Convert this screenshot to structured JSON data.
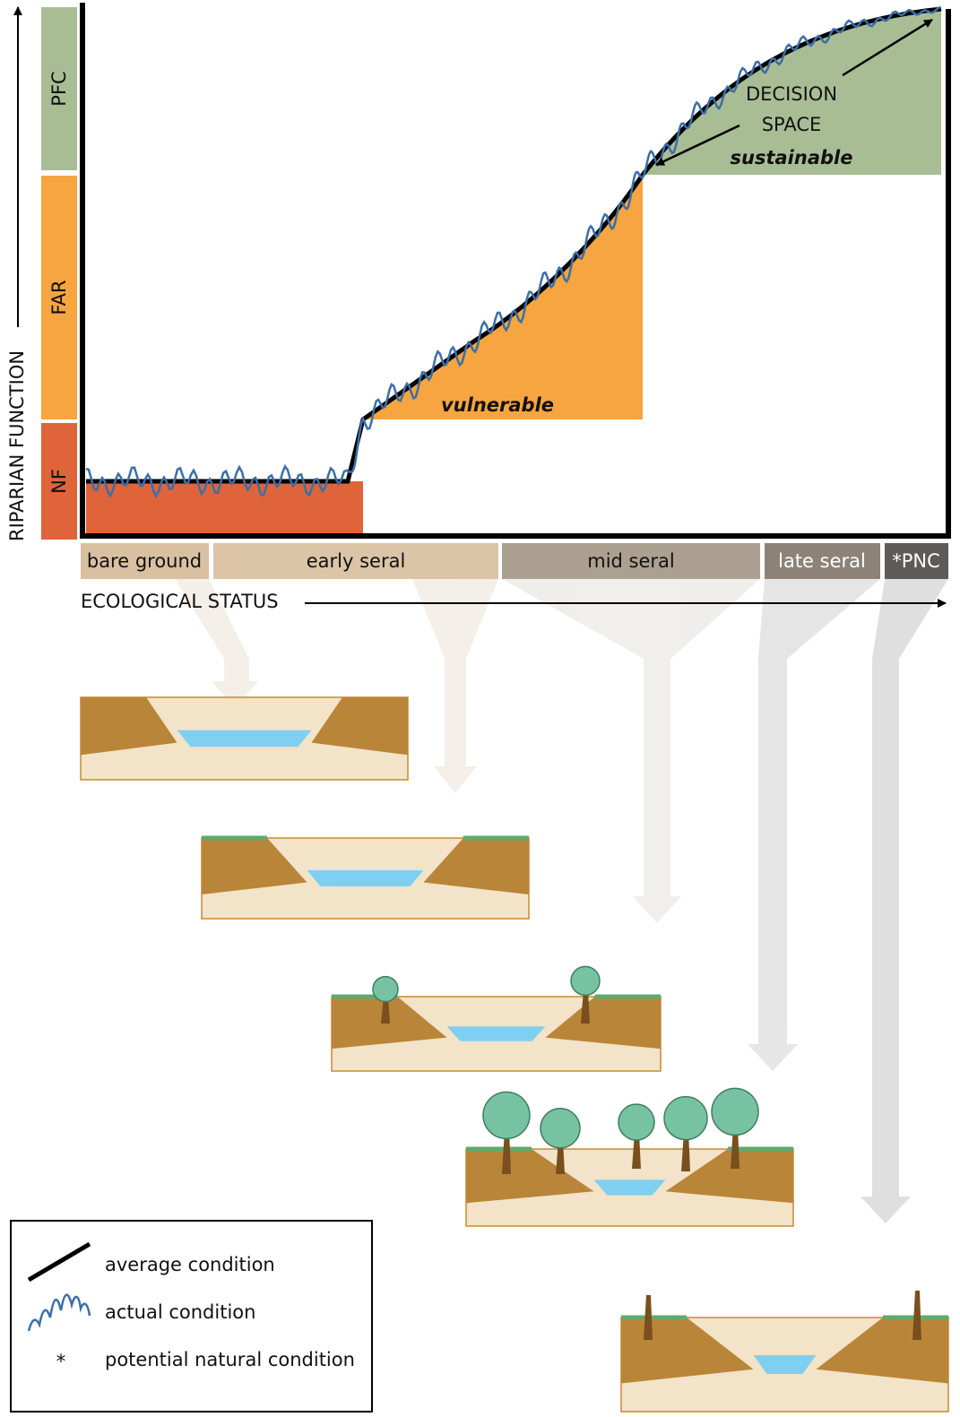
{
  "y_axis": {
    "label": "RIPARIAN FUNCTION",
    "levels": [
      "PFC",
      "FAR",
      "NF"
    ]
  },
  "regions": {
    "decision_space": [
      "DECISION",
      "SPACE"
    ],
    "sustainable": "sustainable",
    "vulnerable": "vulnerable"
  },
  "x_axis": {
    "label": "ECOLOGICAL STATUS",
    "stages": [
      "bare ground",
      "early seral",
      "mid seral",
      "late seral",
      "*PNC"
    ]
  },
  "legend": {
    "items": [
      {
        "label": "average condition"
      },
      {
        "label": "actual condition"
      },
      {
        "symbol": "*",
        "label": "potential natural condition"
      }
    ]
  }
}
